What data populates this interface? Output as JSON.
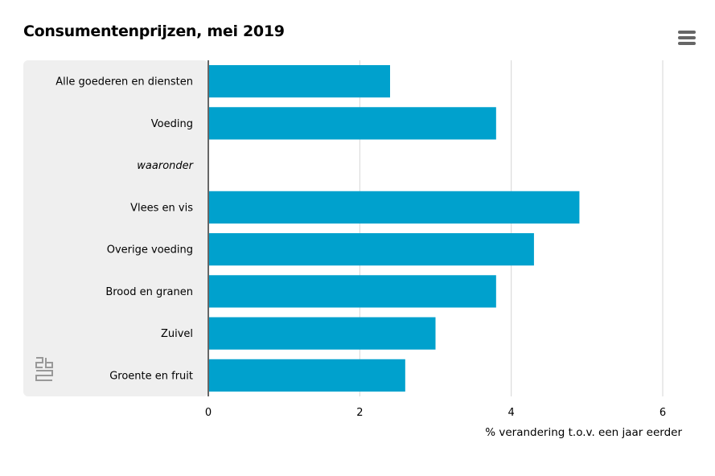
{
  "title": "Consumentenprijzen, mei 2019",
  "menu_icon": "hamburger-menu-icon",
  "logo_icon": "cbs-logo-icon",
  "chart_data": {
    "type": "bar",
    "orientation": "horizontal",
    "title": "Consumentenprijzen, mei 2019",
    "categories": [
      "Alle goederen en diensten",
      "Voeding",
      "waaronder",
      "Vlees en vis",
      "Overige voeding",
      "Brood en granen",
      "Zuivel",
      "Groente en fruit"
    ],
    "italic_categories": [
      "waaronder"
    ],
    "values": [
      2.4,
      3.8,
      null,
      4.9,
      4.3,
      3.8,
      3.0,
      2.6
    ],
    "xlabel": "% verandering t.o.v. een jaar eerder",
    "ylabel": "",
    "xlim": [
      0,
      6
    ],
    "xticks": [
      0,
      2,
      4,
      6
    ],
    "grid": true,
    "bar_color": "#00a1cd",
    "category_panel_color": "#efefef",
    "axis_color": "#666666",
    "grid_color": "#d6d6d6"
  }
}
